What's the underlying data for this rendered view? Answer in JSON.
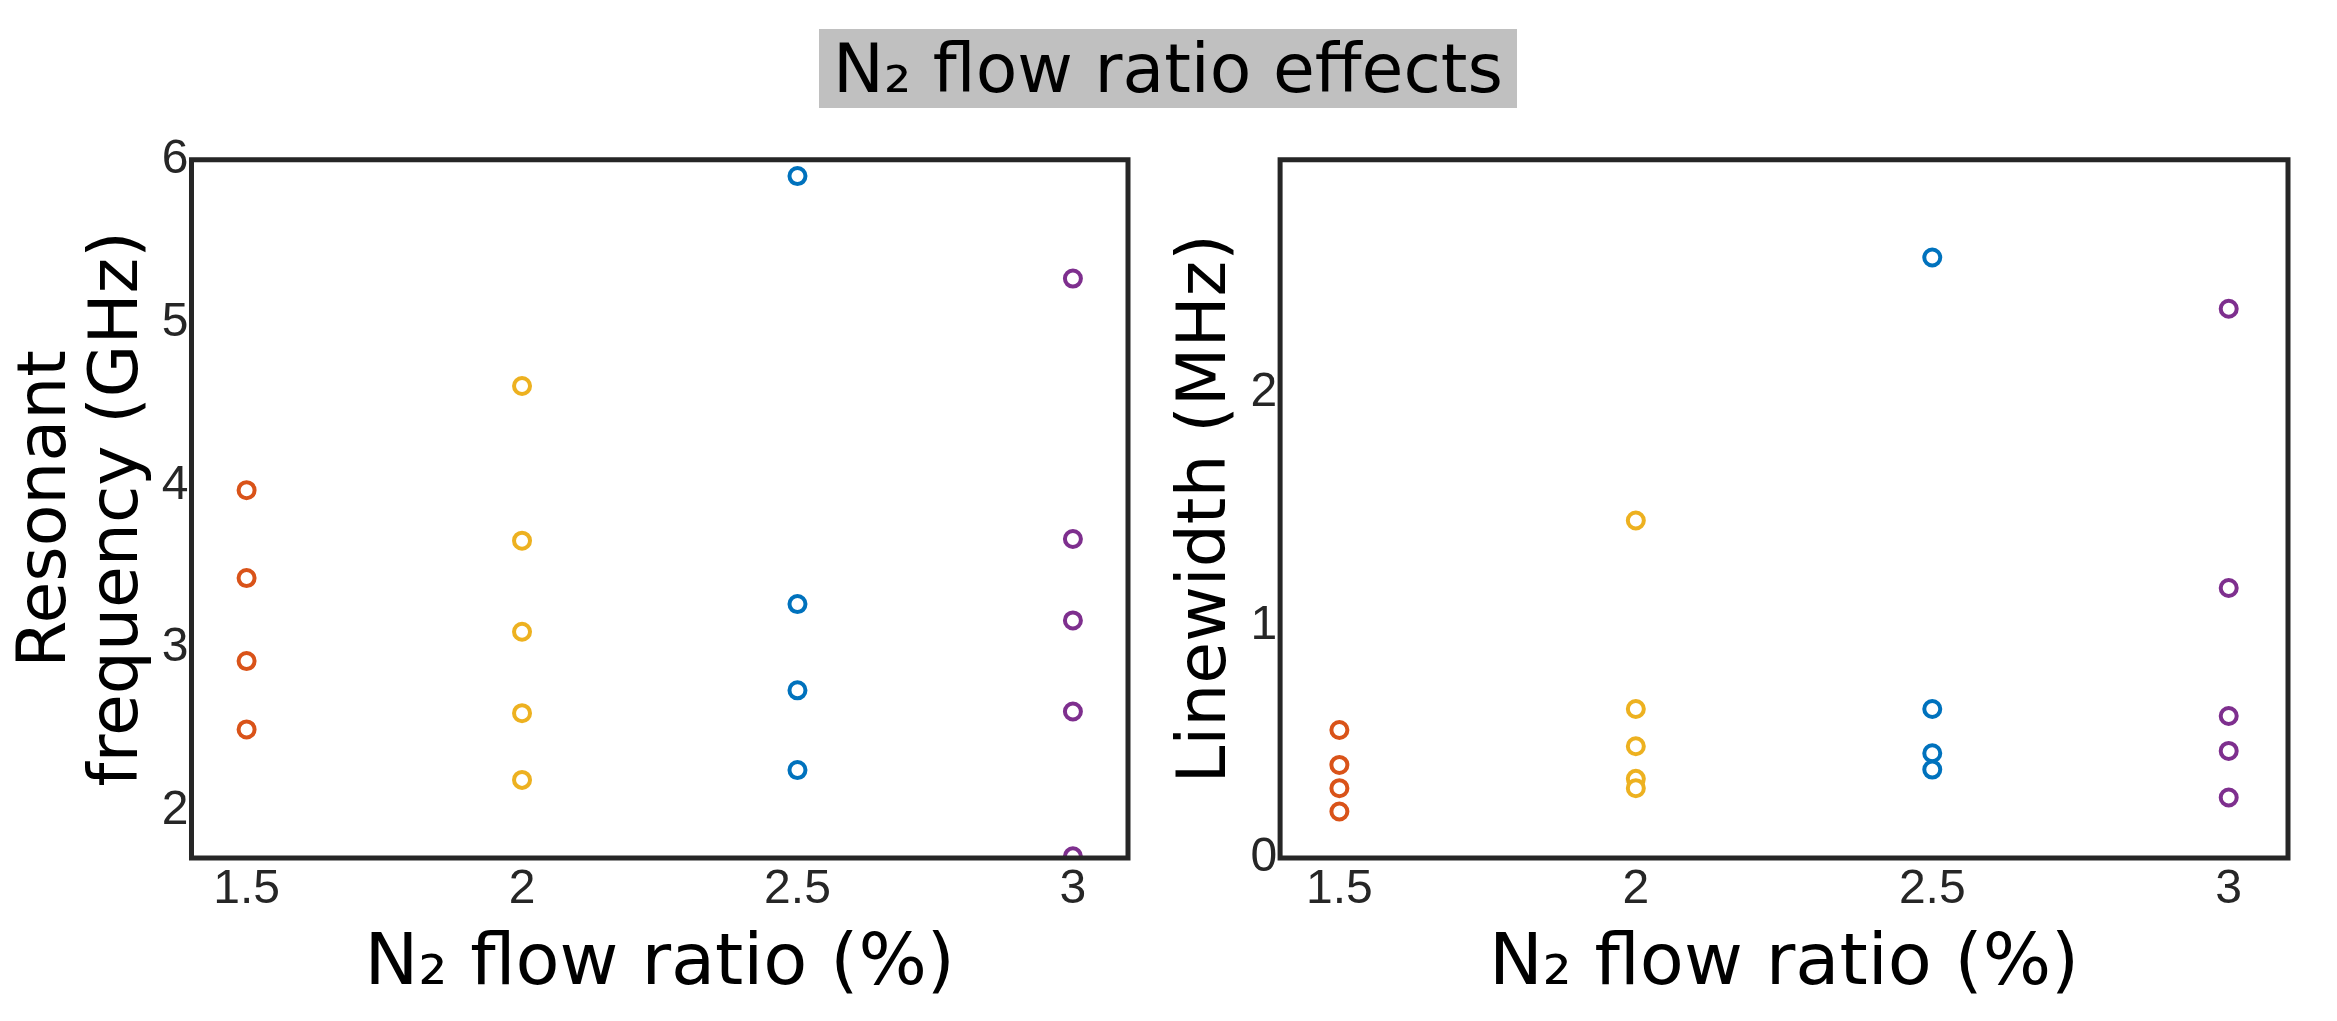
{
  "chart_data": [
    {
      "type": "scatter",
      "title": "N₂ flow ratio effects",
      "xlabel": "N₂ flow ratio (%)",
      "ylabel": "Resonant frequency (GHz)",
      "xlim": [
        1.4,
        3.1
      ],
      "xticks": [
        1.5,
        2,
        2.5,
        3
      ],
      "ylim": [
        1.71,
        6
      ],
      "yticks": [
        2,
        3,
        4,
        5,
        6
      ],
      "marker": "circle",
      "series": [
        {
          "color": "#d95319",
          "x": [
            1.5,
            1.5,
            1.5,
            1.5
          ],
          "values": [
            3.97,
            3.43,
            2.92,
            2.5
          ]
        },
        {
          "color": "#edb120",
          "x": [
            2,
            2,
            2,
            2,
            2
          ],
          "values": [
            4.61,
            3.66,
            3.1,
            2.6,
            2.19
          ]
        },
        {
          "color": "#0072bd",
          "x": [
            2.5,
            2.5,
            2.5,
            2.5
          ],
          "values": [
            5.9,
            3.27,
            2.74,
            2.25
          ]
        },
        {
          "color": "#7e2f8e",
          "x": [
            3,
            3,
            3,
            3,
            3
          ],
          "values": [
            5.27,
            3.67,
            3.17,
            2.61,
            1.72
          ]
        }
      ]
    },
    {
      "type": "scatter",
      "xlabel": "N₂ flow ratio (%)",
      "ylabel": "Linewidth (MHz)",
      "xlim": [
        1.4,
        3.1
      ],
      "xticks": [
        1.5,
        2,
        2.5,
        3
      ],
      "ylim": [
        0,
        3
      ],
      "yticks": [
        0,
        1,
        2
      ],
      "marker": "circle",
      "series": [
        {
          "color": "#d95319",
          "x": [
            1.5,
            1.5,
            1.5,
            1.5
          ],
          "values": [
            0.55,
            0.4,
            0.3,
            0.2
          ]
        },
        {
          "color": "#edb120",
          "x": [
            2,
            2,
            2,
            2,
            2
          ],
          "values": [
            1.45,
            0.64,
            0.48,
            0.34,
            0.3
          ]
        },
        {
          "color": "#0072bd",
          "x": [
            2.5,
            2.5,
            2.5,
            2.5
          ],
          "values": [
            2.58,
            0.64,
            0.45,
            0.38
          ]
        },
        {
          "color": "#7e2f8e",
          "x": [
            3,
            3,
            3,
            3,
            3
          ],
          "values": [
            2.36,
            1.16,
            0.61,
            0.46,
            0.26
          ]
        }
      ]
    }
  ]
}
